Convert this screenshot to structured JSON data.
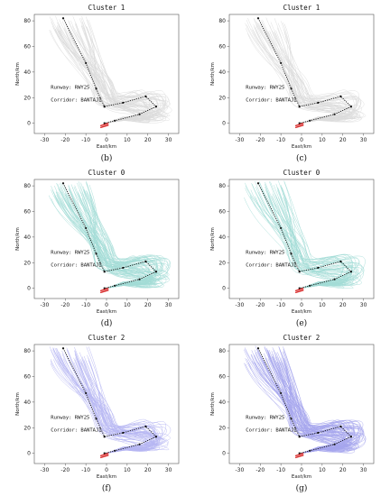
{
  "chart_data": [
    {
      "type": "line",
      "caption": "(b)",
      "title": "Cluster 1",
      "xlabel": "East/km",
      "ylabel": "North/km",
      "xlim": [
        -35,
        35
      ],
      "ylim": [
        -8,
        85
      ],
      "xticks": [
        -30,
        -20,
        -10,
        0,
        10,
        20,
        30
      ],
      "yticks": [
        0,
        20,
        40,
        60,
        80
      ],
      "runway_label": "Runway: RWY25",
      "corridor_label": "Corridor: BANTAJI",
      "track_color": "#9a9a9a",
      "track_count": 60,
      "track_opacity": 0.35,
      "route": {
        "corridor": [
          [
            -21,
            82
          ],
          [
            -10,
            47
          ],
          [
            -5,
            27
          ],
          [
            -1,
            13
          ]
        ],
        "downwind": [
          [
            -1,
            13
          ],
          [
            8,
            16
          ],
          [
            19,
            21
          ],
          [
            24,
            13
          ]
        ],
        "base": [
          [
            24,
            13
          ],
          [
            16,
            7
          ],
          [
            4,
            2
          ],
          [
            -1,
            0
          ]
        ]
      },
      "runway": [
        [
          -3,
          -2
        ],
        [
          1,
          0
        ]
      ],
      "runway_color": "#d62020"
    },
    {
      "type": "line",
      "caption": "(c)",
      "title": "Cluster 1",
      "xlabel": "East/km",
      "ylabel": "North/km",
      "xlim": [
        -35,
        35
      ],
      "ylim": [
        -8,
        85
      ],
      "xticks": [
        -30,
        -20,
        -10,
        0,
        10,
        20,
        30
      ],
      "yticks": [
        0,
        20,
        40,
        60,
        80
      ],
      "runway_label": "Runway: RWY25",
      "corridor_label": "Corridor: BANTAJI",
      "track_color": "#9a9a9a",
      "track_count": 45,
      "track_opacity": 0.35,
      "route": {
        "corridor": [
          [
            -21,
            82
          ],
          [
            -10,
            47
          ],
          [
            -5,
            27
          ],
          [
            -1,
            13
          ]
        ],
        "downwind": [
          [
            -1,
            13
          ],
          [
            8,
            16
          ],
          [
            19,
            21
          ],
          [
            24,
            13
          ]
        ],
        "base": [
          [
            24,
            13
          ],
          [
            16,
            7
          ],
          [
            4,
            2
          ],
          [
            -1,
            0
          ]
        ]
      },
      "runway": [
        [
          -3,
          -2
        ],
        [
          1,
          0
        ]
      ],
      "runway_color": "#d62020"
    },
    {
      "type": "line",
      "caption": "(d)",
      "title": "Cluster 0",
      "xlabel": "East/km",
      "ylabel": "North/km",
      "xlim": [
        -35,
        35
      ],
      "ylim": [
        -8,
        85
      ],
      "xticks": [
        -30,
        -20,
        -10,
        0,
        10,
        20,
        30
      ],
      "yticks": [
        0,
        20,
        40,
        60,
        80
      ],
      "runway_label": "Runway: RWY25",
      "corridor_label": "Corridor: BANTAJI",
      "track_color": "#1aa89a",
      "track_count": 70,
      "track_opacity": 0.4,
      "route": {
        "corridor": [
          [
            -21,
            82
          ],
          [
            -10,
            47
          ],
          [
            -5,
            27
          ],
          [
            -1,
            13
          ]
        ],
        "downwind": [
          [
            -1,
            13
          ],
          [
            8,
            16
          ],
          [
            19,
            21
          ],
          [
            24,
            13
          ]
        ],
        "base": [
          [
            24,
            13
          ],
          [
            16,
            7
          ],
          [
            4,
            2
          ],
          [
            -1,
            0
          ]
        ]
      },
      "runway": [
        [
          -3,
          -2
        ],
        [
          1,
          0
        ]
      ],
      "runway_color": "#d62020"
    },
    {
      "type": "line",
      "caption": "(e)",
      "title": "Cluster 0",
      "xlabel": "East/km",
      "ylabel": "North/km",
      "xlim": [
        -35,
        35
      ],
      "ylim": [
        -8,
        85
      ],
      "xticks": [
        -30,
        -20,
        -10,
        0,
        10,
        20,
        30
      ],
      "yticks": [
        0,
        20,
        40,
        60,
        80
      ],
      "runway_label": "Runway: RWY25",
      "corridor_label": "Corridor: BANTAJI",
      "track_color": "#1aa89a",
      "track_count": 50,
      "track_opacity": 0.4,
      "route": {
        "corridor": [
          [
            -21,
            82
          ],
          [
            -10,
            47
          ],
          [
            -5,
            27
          ],
          [
            -1,
            13
          ]
        ],
        "downwind": [
          [
            -1,
            13
          ],
          [
            8,
            16
          ],
          [
            19,
            21
          ],
          [
            24,
            13
          ]
        ],
        "base": [
          [
            24,
            13
          ],
          [
            16,
            7
          ],
          [
            4,
            2
          ],
          [
            -1,
            0
          ]
        ]
      },
      "runway": [
        [
          -3,
          -2
        ],
        [
          1,
          0
        ]
      ],
      "runway_color": "#d62020"
    },
    {
      "type": "line",
      "caption": "(f)",
      "title": "Cluster 2",
      "xlabel": "East/km",
      "ylabel": "North/km",
      "xlim": [
        -35,
        35
      ],
      "ylim": [
        -8,
        85
      ],
      "xticks": [
        -30,
        -20,
        -10,
        0,
        10,
        20,
        30
      ],
      "yticks": [
        0,
        20,
        40,
        60,
        80
      ],
      "runway_label": "Runway: RWY25",
      "corridor_label": "Corridor: BANTAJI",
      "track_color": "#4a4ae0",
      "track_count": 55,
      "track_opacity": 0.4,
      "route": {
        "corridor": [
          [
            -21,
            82
          ],
          [
            -10,
            47
          ],
          [
            -5,
            27
          ],
          [
            -1,
            13
          ]
        ],
        "downwind": [
          [
            -1,
            13
          ],
          [
            8,
            16
          ],
          [
            19,
            21
          ],
          [
            24,
            13
          ]
        ],
        "base": [
          [
            24,
            13
          ],
          [
            16,
            7
          ],
          [
            4,
            2
          ],
          [
            -1,
            0
          ]
        ]
      },
      "runway": [
        [
          -3,
          -2
        ],
        [
          1,
          0
        ]
      ],
      "runway_color": "#d62020"
    },
    {
      "type": "line",
      "caption": "(g)",
      "title": "Cluster 2",
      "xlabel": "East/km",
      "ylabel": "North/km",
      "xlim": [
        -35,
        35
      ],
      "ylim": [
        -8,
        85
      ],
      "xticks": [
        -30,
        -20,
        -10,
        0,
        10,
        20,
        30
      ],
      "yticks": [
        0,
        20,
        40,
        60,
        80
      ],
      "runway_label": "Runway: RWY25",
      "corridor_label": "Corridor: BANTAJI",
      "track_color": "#3a3ad8",
      "track_count": 75,
      "track_opacity": 0.45,
      "route": {
        "corridor": [
          [
            -21,
            82
          ],
          [
            -10,
            47
          ],
          [
            -5,
            27
          ],
          [
            -1,
            13
          ]
        ],
        "downwind": [
          [
            -1,
            13
          ],
          [
            8,
            16
          ],
          [
            19,
            21
          ],
          [
            24,
            13
          ]
        ],
        "base": [
          [
            24,
            13
          ],
          [
            16,
            7
          ],
          [
            4,
            2
          ],
          [
            -1,
            0
          ]
        ]
      },
      "runway": [
        [
          -3,
          -2
        ],
        [
          1,
          0
        ]
      ],
      "runway_color": "#d62020"
    }
  ]
}
